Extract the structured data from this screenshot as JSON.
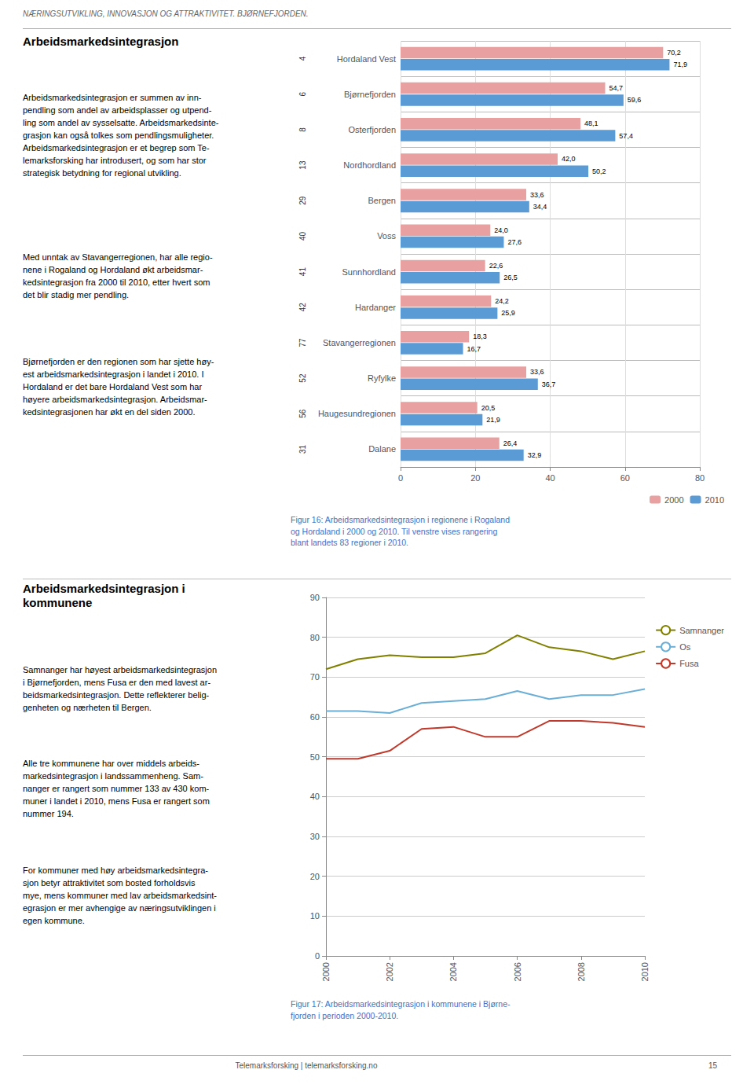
{
  "header": "NÆRINGSUTVIKLING, INNOVASJON OG ATTRAKTIVITET. BJØRNEFJORDEN.",
  "footer": [
    "Telemarksforsking | telemarksforsking.no",
    "15"
  ],
  "text_sections": [
    {
      "title": "Arbeidsmarkedsintegrasjon",
      "paragraphs": [
        "Arbeidsmarkedsintegrasjon er summen av inn-\npendling som andel av arbeidsplasser og utpend-\nling som andel av sysselsatte. Arbeidsmarkedsinte-\ngrasjon kan også tolkes som pendlingsmuligheter.\nArbeidsmarkedsintegrasjon er et begrep som Te-\nlemarksforsking har introdusert, og som har stor\nstrategisk betydning for regional utvikling.",
        "Med unntak av Stavangerregionen, har alle regio-\nnene i Rogaland og Hordaland økt arbeidsmar-\nkedsintegrasjon fra 2000 til 2010, etter hvert som\ndet blir stadig mer pendling.",
        "Bjørnefjorden er den regionen som har sjette høy-\nest arbeidsmarkedsintegrasjon i landet i 2010. I\nHordaland er det bare Hordaland Vest som har\nhøyere arbeidsmarkedsintegrasjon. Arbeidsmar-\nkedsintegrasjonen har økt en del siden 2000."
      ]
    },
    {
      "title": "Arbeidsmarkedsintegrasjon i\nkommunene",
      "paragraphs": [
        "Samnanger har høyest arbeidsmarkedsintegrasjon\ni Bjørnefjorden, mens Fusa er den med lavest ar-\nbeidsmarkedsintegrasjon. Dette reflekterer belig-\ngenheten og nærheten til Bergen.",
        "Alle tre kommunene har over middels arbeids-\nmarkedsintegrasjon i landssammenheng. Sam-\nnanger er rangert som nummer 133 av 430 kom-\nmuner i landet i 2010, mens Fusa er rangert som\nnummer 194.",
        "For kommuner med høy arbeidsmarkedsintegra-\nsjon betyr attraktivitet som bosted forholdsvis\nmye, mens kommuner med lav arbeidsmarkedsint-\negrasjon er mer avhengige av næringsutviklingen i\negen kommune."
      ]
    }
  ],
  "chart_data": [
    {
      "type": "bar",
      "orientation": "horizontal",
      "title": "Figur 16: Arbeidsmarkedsintegrasjon i regionene i Rogaland\nog Hordaland i 2000 og 2010. Til venstre vises rangering\nblant landets 83 regioner i 2010.",
      "categories": [
        "Hordaland Vest",
        "Bjørnefjorden",
        "Osterfjorden",
        "Nordhordland",
        "Bergen",
        "Voss",
        "Sunnhordland",
        "Hardanger",
        "Stavangerregionen",
        "Ryfylke",
        "Haugesundregionen",
        "Dalane"
      ],
      "ranks": [
        4,
        6,
        8,
        13,
        29,
        40,
        41,
        42,
        77,
        52,
        56,
        31
      ],
      "series": [
        {
          "name": "2000",
          "color": "#e8a0a0",
          "values": [
            70.2,
            54.7,
            48.1,
            42.0,
            33.6,
            24.0,
            22.6,
            24.2,
            18.3,
            33.6,
            20.5,
            26.4
          ],
          "value_labels": [
            "70,2",
            "54,7",
            "48,1",
            "42,0",
            "33,6",
            "24,0",
            "22,6",
            "24,2",
            "18,3",
            "33,6",
            "20,5",
            "26,4"
          ]
        },
        {
          "name": "2010",
          "color": "#5b9bd5",
          "values": [
            71.9,
            59.6,
            57.4,
            50.2,
            34.4,
            27.6,
            26.5,
            25.9,
            16.7,
            36.7,
            21.9,
            32.9
          ],
          "value_labels": [
            "71,9",
            "59,6",
            "57,4",
            "50,2",
            "34,4",
            "27,6",
            "26,5",
            "25,9",
            "16,7",
            "36,7",
            "21,9",
            "32,9"
          ]
        }
      ],
      "xlim": [
        0,
        80
      ],
      "xticks": [
        0,
        20,
        40,
        60,
        80
      ],
      "grid": true,
      "data_labels": true,
      "legend": "lower right"
    },
    {
      "type": "line",
      "title": "Figur 17: Arbeidsmarkedsintegrasjon i kommunene i Bjørne-\nfjorden i perioden 2000-2010.",
      "x": [
        2000,
        2001,
        2002,
        2003,
        2004,
        2005,
        2006,
        2007,
        2008,
        2009,
        2010
      ],
      "series": [
        {
          "name": "Samnanger",
          "color": "#808000",
          "values": [
            72.0,
            74.5,
            75.5,
            75.0,
            75.0,
            76.0,
            80.5,
            77.5,
            76.5,
            74.5,
            76.5
          ]
        },
        {
          "name": "Os",
          "color": "#6baed6",
          "values": [
            61.5,
            61.5,
            61.0,
            63.5,
            64.0,
            64.5,
            66.5,
            64.5,
            65.5,
            65.5,
            67.0
          ]
        },
        {
          "name": "Fusa",
          "color": "#c0392b",
          "values": [
            49.5,
            49.5,
            51.5,
            57.0,
            57.5,
            55.0,
            55.0,
            59.0,
            59.0,
            58.5,
            57.5
          ]
        }
      ],
      "xlim": [
        2000,
        2010
      ],
      "xticks": [
        2000,
        2002,
        2004,
        2006,
        2008,
        2010
      ],
      "ylim": [
        0,
        90
      ],
      "yticks": [
        0,
        10,
        20,
        30,
        40,
        50,
        60,
        70,
        80,
        90
      ],
      "grid": true,
      "legend": "right"
    }
  ]
}
